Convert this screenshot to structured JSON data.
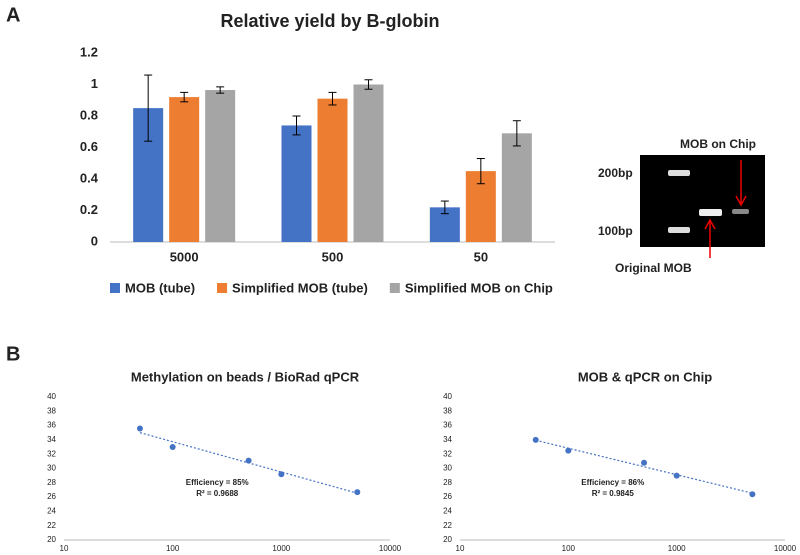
{
  "panels": [
    "A",
    "B"
  ],
  "gel": {
    "labels": [
      "200bp",
      "100bp",
      "MOB on Chip",
      "Original MOB"
    ]
  },
  "chart_data": [
    {
      "type": "bar",
      "title": "Relative yield by B-globin",
      "categories": [
        "5000",
        "500",
        "50"
      ],
      "series": [
        {
          "name": "MOB (tube)",
          "color": "#4472c4",
          "values": [
            0.85,
            0.74,
            0.22
          ],
          "errors": [
            0.21,
            0.06,
            0.04
          ]
        },
        {
          "name": "Simplified MOB (tube)",
          "color": "#ed7d31",
          "values": [
            0.92,
            0.91,
            0.45
          ],
          "errors": [
            0.03,
            0.04,
            0.08
          ]
        },
        {
          "name": "Simplified MOB on Chip",
          "color": "#a5a5a5",
          "values": [
            0.965,
            1.0,
            0.69
          ],
          "errors": [
            0.02,
            0.03,
            0.08
          ]
        }
      ],
      "ylim": [
        0,
        1.2
      ],
      "yticks": [
        0,
        0.2,
        0.4,
        0.6,
        0.8,
        1,
        1.2
      ],
      "grid": false,
      "legend": "bottom"
    },
    {
      "type": "scatter",
      "title": "Methylation on beads / BioRad qPCR",
      "x": [
        50,
        100,
        500,
        1000,
        5000
      ],
      "values": [
        35.6,
        33.0,
        31.1,
        29.2,
        26.7
      ],
      "color": "#4472c4",
      "xscale": "log",
      "xlim": [
        10,
        10000
      ],
      "xticks": [
        10,
        100,
        1000,
        10000
      ],
      "ylim": [
        20,
        40
      ],
      "yticks": [
        20,
        22,
        24,
        26,
        28,
        30,
        32,
        34,
        36,
        38,
        40
      ],
      "trendline": true,
      "annotations": [
        "Efficiency = 85%",
        "R² = 0.9688"
      ]
    },
    {
      "type": "scatter",
      "title": "MOB & qPCR on Chip",
      "x": [
        50,
        100,
        500,
        1000,
        5000
      ],
      "values": [
        34.0,
        32.5,
        30.8,
        29.0,
        26.4
      ],
      "color": "#4472c4",
      "xscale": "log",
      "xlim": [
        10,
        10000
      ],
      "xticks": [
        10,
        100,
        1000,
        10000
      ],
      "ylim": [
        20,
        40
      ],
      "yticks": [
        20,
        22,
        24,
        26,
        28,
        30,
        32,
        34,
        36,
        38,
        40
      ],
      "trendline": true,
      "annotations": [
        "Efficiency = 86%",
        "R² = 0.9845"
      ]
    }
  ]
}
